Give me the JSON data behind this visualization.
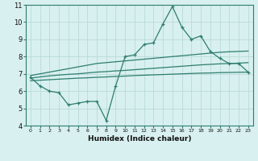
{
  "x": [
    0,
    1,
    2,
    3,
    4,
    5,
    6,
    7,
    8,
    9,
    10,
    11,
    12,
    13,
    14,
    15,
    16,
    17,
    18,
    19,
    20,
    21,
    22,
    23
  ],
  "y_main": [
    6.8,
    6.3,
    6.0,
    5.9,
    5.2,
    5.3,
    5.4,
    5.4,
    4.3,
    6.3,
    8.0,
    8.1,
    8.7,
    8.8,
    9.9,
    10.9,
    9.7,
    9.0,
    9.2,
    8.3,
    7.9,
    7.6,
    7.6,
    7.1
  ],
  "y_upper": [
    6.9,
    7.0,
    7.1,
    7.2,
    7.3,
    7.4,
    7.5,
    7.6,
    7.65,
    7.7,
    7.75,
    7.8,
    7.85,
    7.9,
    7.95,
    8.0,
    8.05,
    8.1,
    8.15,
    8.2,
    8.25,
    8.28,
    8.3,
    8.32
  ],
  "y_mid": [
    6.75,
    6.82,
    6.88,
    6.93,
    6.97,
    7.0,
    7.05,
    7.1,
    7.13,
    7.17,
    7.2,
    7.24,
    7.28,
    7.32,
    7.36,
    7.4,
    7.44,
    7.48,
    7.52,
    7.55,
    7.58,
    7.6,
    7.62,
    7.65
  ],
  "y_lower": [
    6.6,
    6.63,
    6.66,
    6.69,
    6.72,
    6.75,
    6.77,
    6.8,
    6.82,
    6.85,
    6.87,
    6.9,
    6.92,
    6.94,
    6.96,
    6.98,
    7.0,
    7.02,
    7.04,
    7.05,
    7.07,
    7.08,
    7.09,
    7.1
  ],
  "color_main": "#2e7d6e",
  "bg_color": "#d8f0ef",
  "grid_color": "#b8dbd8",
  "xlabel": "Humidex (Indice chaleur)",
  "xlim": [
    -0.5,
    23.5
  ],
  "ylim": [
    4,
    11
  ],
  "yticks": [
    4,
    5,
    6,
    7,
    8,
    9,
    10,
    11
  ],
  "xtick_labels": [
    "0",
    "1",
    "2",
    "3",
    "4",
    "5",
    "6",
    "7",
    "8",
    "9",
    "10",
    "11",
    "12",
    "13",
    "14",
    "15",
    "16",
    "17",
    "18",
    "19",
    "20",
    "21",
    "22",
    "23"
  ]
}
